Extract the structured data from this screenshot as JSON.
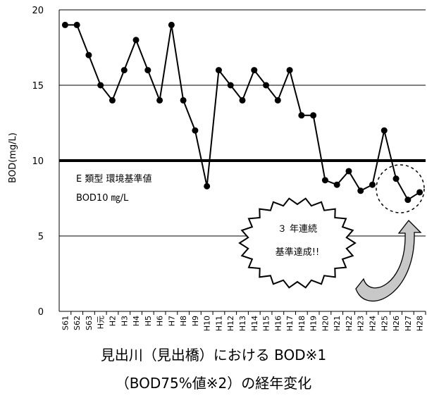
{
  "chart_data": {
    "type": "line",
    "ylabel": "BOD(mg/L)",
    "xlabel": "",
    "ylim": [
      0,
      20
    ],
    "yticks": [
      0,
      5,
      10,
      15,
      20
    ],
    "grid": true,
    "categories": [
      "S61",
      "S62",
      "S63",
      "H元",
      "H2",
      "H3",
      "H4",
      "H5",
      "H6",
      "H7",
      "H8",
      "H9",
      "H10",
      "H11",
      "H12",
      "H13",
      "H14",
      "H15",
      "H16",
      "H17",
      "H18",
      "H19",
      "H20",
      "H21",
      "H22",
      "H23",
      "H24",
      "H25",
      "H26",
      "H27",
      "H28"
    ],
    "series": [
      {
        "name": "",
        "values": [
          19,
          19,
          17,
          15,
          14,
          16,
          18,
          16,
          14,
          19,
          14,
          12,
          8.3,
          16,
          15,
          14,
          16,
          15,
          14,
          16,
          13,
          13,
          8.7,
          8.4,
          9.3,
          8.0,
          8.4,
          12,
          8.8,
          7.4,
          7.9
        ]
      }
    ],
    "reference_line": {
      "value": 10,
      "label_line1": "E 類型  環境基準値",
      "label_line2": "BOD10 ㎎/L"
    },
    "annotation": {
      "line1": "３ 年連続",
      "line2": "基準達成!!"
    },
    "colors": {
      "line": "#000000",
      "grid": "#000000",
      "callout_arrow": "#b8b8b8"
    }
  },
  "caption": {
    "line1": "見出川（見出橋）における BOD※1",
    "line2": "（BOD75%値※2）の経年変化"
  }
}
